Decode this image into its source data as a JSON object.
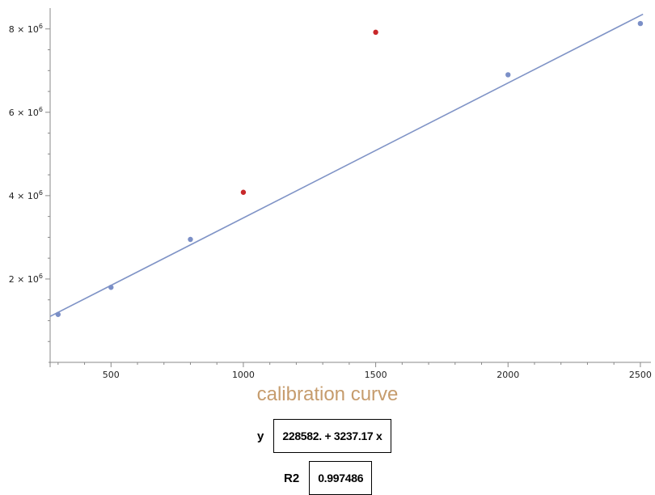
{
  "chart_data": {
    "type": "scatter",
    "title": "calibration curve",
    "xlabel": "",
    "ylabel": "",
    "xlim": [
      270,
      2540
    ],
    "ylim": [
      0,
      8500000
    ],
    "x_ticks": [
      {
        "value": 500,
        "label": "500"
      },
      {
        "value": 1000,
        "label": "1000"
      },
      {
        "value": 1500,
        "label": "1500"
      },
      {
        "value": 2000,
        "label": "2000"
      },
      {
        "value": 2500,
        "label": "2500"
      }
    ],
    "y_ticks": [
      {
        "value": 2000000,
        "mantissa": "2",
        "times": "×",
        "base": "10",
        "exp": "6"
      },
      {
        "value": 4000000,
        "mantissa": "4",
        "times": "×",
        "base": "10",
        "exp": "6"
      },
      {
        "value": 6000000,
        "mantissa": "6",
        "times": "×",
        "base": "10",
        "exp": "6"
      },
      {
        "value": 8000000,
        "mantissa": "8",
        "times": "×",
        "base": "10",
        "exp": "6"
      }
    ],
    "points": [
      {
        "x": 300,
        "y": 1150000,
        "color": "#7b8fc7"
      },
      {
        "x": 500,
        "y": 1800000,
        "color": "#7b8fc7"
      },
      {
        "x": 800,
        "y": 2950000,
        "color": "#7b8fc7"
      },
      {
        "x": 1000,
        "y": 4080000,
        "color": "#c8282a"
      },
      {
        "x": 1500,
        "y": 7920000,
        "color": "#c8282a"
      },
      {
        "x": 2000,
        "y": 6900000,
        "color": "#7b8fc7"
      },
      {
        "x": 2500,
        "y": 8130000,
        "color": "#7b8fc7"
      }
    ],
    "fit_line": {
      "intercept": 228582,
      "slope": 3237.17,
      "color": "#7f93c6"
    },
    "grid": false
  },
  "fit": {
    "y_label": "y",
    "y_equation": "228582. + 3237.17 x",
    "r2_label": "R2",
    "r2_value": "0.997486"
  }
}
